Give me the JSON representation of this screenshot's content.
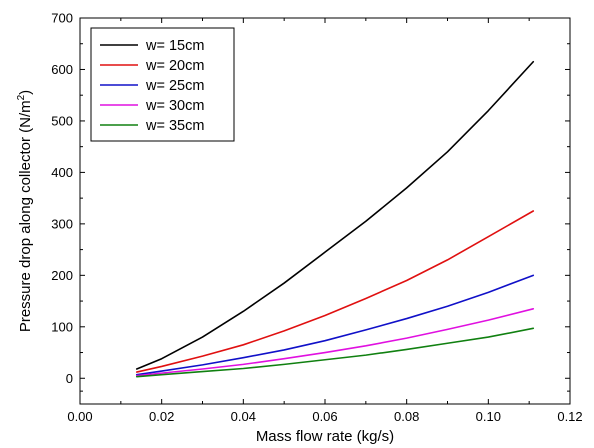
{
  "chart_data": {
    "type": "line",
    "xlabel": "Mass flow rate (kg/s)",
    "ylabel_main": "Pressure drop along collector (N/m",
    "ylabel_sup": "2",
    "ylabel_close": ")",
    "xlim": [
      0.0,
      0.12
    ],
    "ylim": [
      -50,
      700
    ],
    "xticks": [
      0.0,
      0.02,
      0.04,
      0.06,
      0.08,
      0.1,
      0.12
    ],
    "xtick_labels": [
      "0.00",
      "0.02",
      "0.04",
      "0.06",
      "0.08",
      "0.10",
      "0.12"
    ],
    "yticks": [
      0,
      100,
      200,
      300,
      400,
      500,
      600,
      700
    ],
    "ytick_labels": [
      "0",
      "100",
      "200",
      "300",
      "400",
      "500",
      "600",
      "700"
    ],
    "grid": false,
    "legend_position": "top-left",
    "x": [
      0.0139,
      0.02,
      0.03,
      0.04,
      0.05,
      0.06,
      0.07,
      0.08,
      0.09,
      0.1,
      0.111
    ],
    "series": [
      {
        "name": "w= 15cm",
        "color": "#000000",
        "values": [
          18,
          38,
          80,
          130,
          185,
          245,
          305,
          370,
          440,
          520,
          615
        ]
      },
      {
        "name": "w= 20cm",
        "color": "#e01010",
        "values": [
          12,
          23,
          43,
          65,
          92,
          122,
          155,
          190,
          230,
          275,
          325
        ]
      },
      {
        "name": "w= 25cm",
        "color": "#1010c8",
        "values": [
          7,
          14,
          26,
          40,
          55,
          73,
          94,
          116,
          140,
          167,
          200
        ]
      },
      {
        "name": "w= 30cm",
        "color": "#e010e0",
        "values": [
          5,
          10,
          18,
          27,
          38,
          50,
          63,
          78,
          95,
          113,
          135
        ]
      },
      {
        "name": "w= 35cm",
        "color": "#108010",
        "values": [
          3,
          7,
          13,
          19,
          27,
          36,
          45,
          56,
          68,
          80,
          97
        ]
      }
    ]
  }
}
